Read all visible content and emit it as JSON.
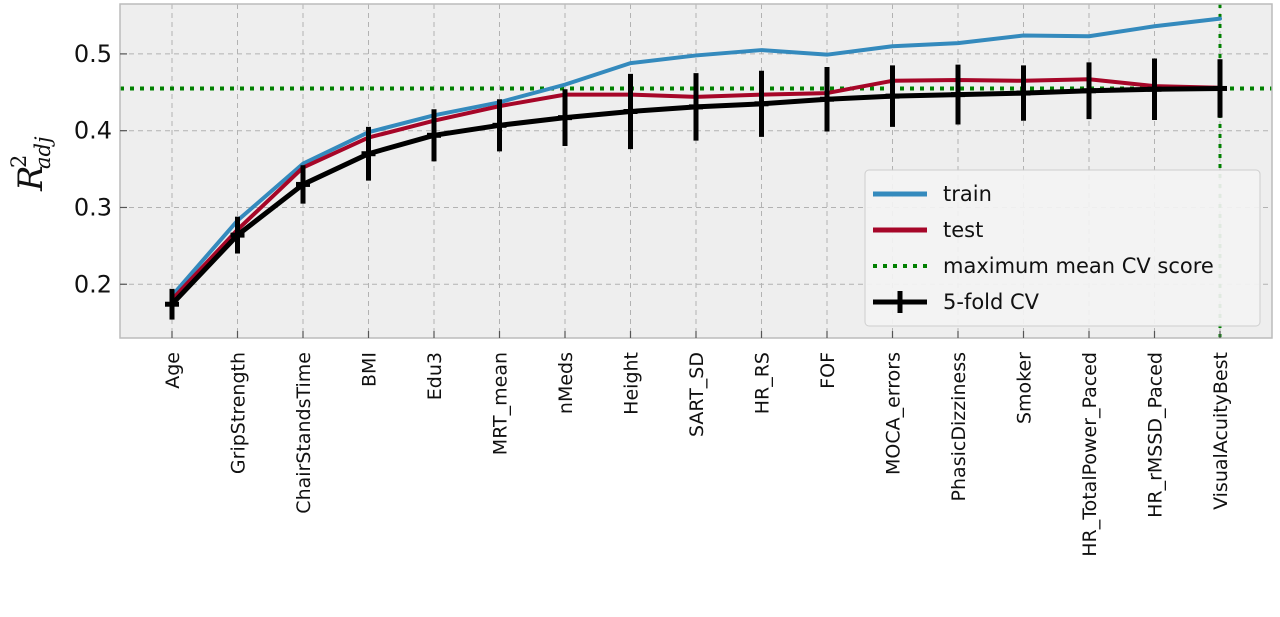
{
  "chart_data": {
    "type": "line",
    "categories": [
      "Age",
      "GripStrength",
      "ChairStandsTime",
      "BMI",
      "Edu3",
      "MRT_mean",
      "nMeds",
      "Height",
      "SART_SD",
      "HR_RS",
      "FOF",
      "MOCA_errors",
      "PhasicDizziness",
      "Smoker",
      "HR_TotalPower_Paced",
      "HR_rMSSD_Paced",
      "VisualAcuityBest"
    ],
    "ylabel": {
      "main": "R",
      "sup": "2",
      "sub": "adj"
    },
    "ylim": [
      0.13,
      0.565
    ],
    "yticks": [
      0.2,
      0.3,
      0.4,
      0.5
    ],
    "ytick_labels": [
      "0.2",
      "0.3",
      "0.4",
      "0.5"
    ],
    "grid": true,
    "legend_position": "lower-right",
    "series": [
      {
        "name": "train",
        "color": "#348ABD",
        "values": [
          0.185,
          0.283,
          0.357,
          0.398,
          0.42,
          0.437,
          0.46,
          0.488,
          0.498,
          0.505,
          0.499,
          0.51,
          0.514,
          0.524,
          0.523,
          0.536,
          0.546
        ]
      },
      {
        "name": "test",
        "color": "#A60628",
        "values": [
          0.18,
          0.271,
          0.352,
          0.391,
          0.413,
          0.432,
          0.447,
          0.447,
          0.444,
          0.447,
          0.449,
          0.465,
          0.466,
          0.465,
          0.467,
          0.458,
          0.456
        ]
      },
      {
        "name": "5-fold CV",
        "color": "#000000",
        "values": [
          0.174,
          0.264,
          0.33,
          0.37,
          0.394,
          0.407,
          0.417,
          0.425,
          0.431,
          0.435,
          0.441,
          0.445,
          0.447,
          0.449,
          0.452,
          0.454,
          0.455
        ],
        "errors": [
          0.02,
          0.024,
          0.025,
          0.035,
          0.034,
          0.034,
          0.037,
          0.049,
          0.044,
          0.043,
          0.042,
          0.04,
          0.039,
          0.036,
          0.037,
          0.04,
          0.038
        ]
      }
    ],
    "reference_lines": [
      {
        "name": "maximum mean CV score",
        "color": "#008000",
        "y": 0.455,
        "x_category": "VisualAcuityBest"
      }
    ]
  }
}
